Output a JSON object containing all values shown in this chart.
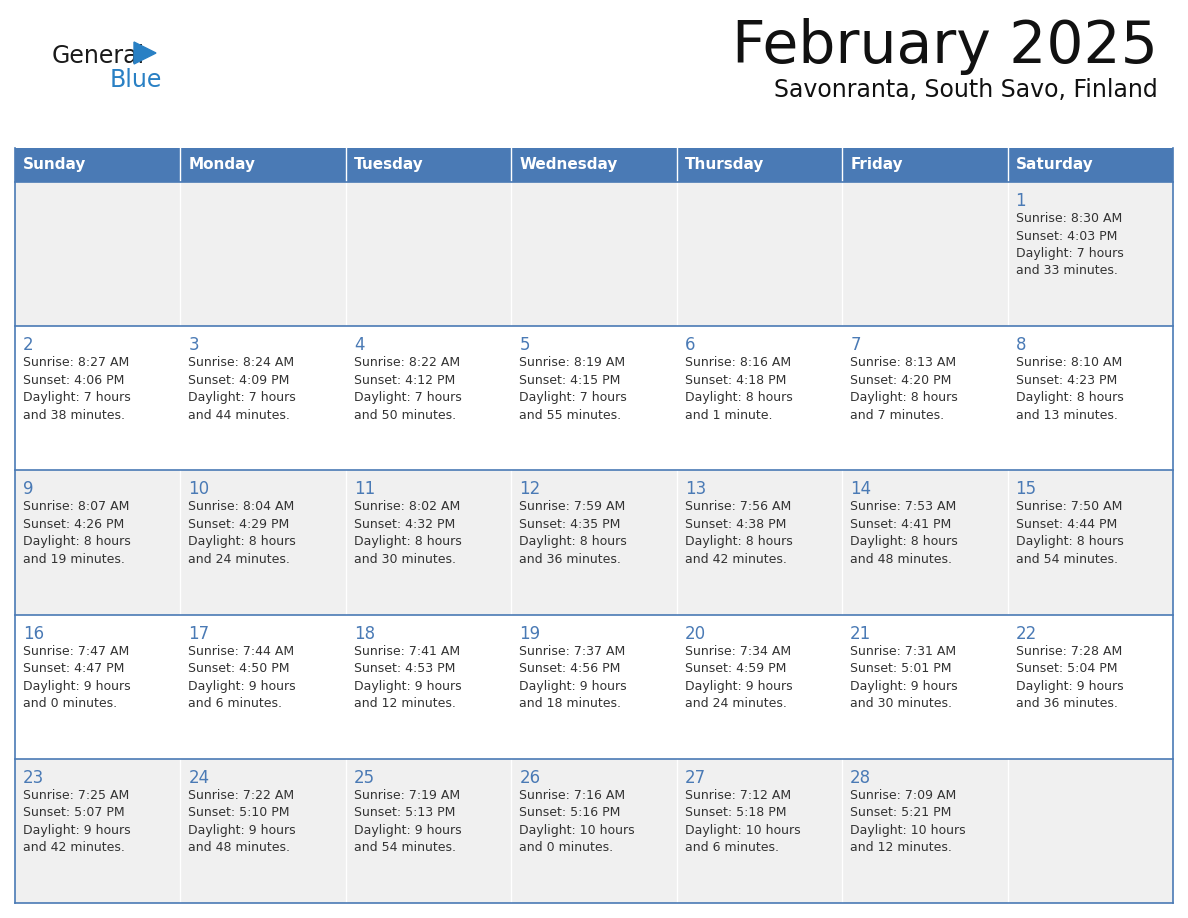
{
  "title": "February 2025",
  "subtitle": "Savonranta, South Savo, Finland",
  "header_bg_color": "#4a7ab5",
  "header_text_color": "#ffffff",
  "cell_bg_color_odd": "#f0f0f0",
  "cell_bg_color_even": "#ffffff",
  "border_color": "#4a7ab5",
  "day_number_color": "#4a7ab5",
  "text_color": "#333333",
  "days_of_week": [
    "Sunday",
    "Monday",
    "Tuesday",
    "Wednesday",
    "Thursday",
    "Friday",
    "Saturday"
  ],
  "weeks": [
    [
      {
        "day": null,
        "info": null
      },
      {
        "day": null,
        "info": null
      },
      {
        "day": null,
        "info": null
      },
      {
        "day": null,
        "info": null
      },
      {
        "day": null,
        "info": null
      },
      {
        "day": null,
        "info": null
      },
      {
        "day": 1,
        "info": "Sunrise: 8:30 AM\nSunset: 4:03 PM\nDaylight: 7 hours\nand 33 minutes."
      }
    ],
    [
      {
        "day": 2,
        "info": "Sunrise: 8:27 AM\nSunset: 4:06 PM\nDaylight: 7 hours\nand 38 minutes."
      },
      {
        "day": 3,
        "info": "Sunrise: 8:24 AM\nSunset: 4:09 PM\nDaylight: 7 hours\nand 44 minutes."
      },
      {
        "day": 4,
        "info": "Sunrise: 8:22 AM\nSunset: 4:12 PM\nDaylight: 7 hours\nand 50 minutes."
      },
      {
        "day": 5,
        "info": "Sunrise: 8:19 AM\nSunset: 4:15 PM\nDaylight: 7 hours\nand 55 minutes."
      },
      {
        "day": 6,
        "info": "Sunrise: 8:16 AM\nSunset: 4:18 PM\nDaylight: 8 hours\nand 1 minute."
      },
      {
        "day": 7,
        "info": "Sunrise: 8:13 AM\nSunset: 4:20 PM\nDaylight: 8 hours\nand 7 minutes."
      },
      {
        "day": 8,
        "info": "Sunrise: 8:10 AM\nSunset: 4:23 PM\nDaylight: 8 hours\nand 13 minutes."
      }
    ],
    [
      {
        "day": 9,
        "info": "Sunrise: 8:07 AM\nSunset: 4:26 PM\nDaylight: 8 hours\nand 19 minutes."
      },
      {
        "day": 10,
        "info": "Sunrise: 8:04 AM\nSunset: 4:29 PM\nDaylight: 8 hours\nand 24 minutes."
      },
      {
        "day": 11,
        "info": "Sunrise: 8:02 AM\nSunset: 4:32 PM\nDaylight: 8 hours\nand 30 minutes."
      },
      {
        "day": 12,
        "info": "Sunrise: 7:59 AM\nSunset: 4:35 PM\nDaylight: 8 hours\nand 36 minutes."
      },
      {
        "day": 13,
        "info": "Sunrise: 7:56 AM\nSunset: 4:38 PM\nDaylight: 8 hours\nand 42 minutes."
      },
      {
        "day": 14,
        "info": "Sunrise: 7:53 AM\nSunset: 4:41 PM\nDaylight: 8 hours\nand 48 minutes."
      },
      {
        "day": 15,
        "info": "Sunrise: 7:50 AM\nSunset: 4:44 PM\nDaylight: 8 hours\nand 54 minutes."
      }
    ],
    [
      {
        "day": 16,
        "info": "Sunrise: 7:47 AM\nSunset: 4:47 PM\nDaylight: 9 hours\nand 0 minutes."
      },
      {
        "day": 17,
        "info": "Sunrise: 7:44 AM\nSunset: 4:50 PM\nDaylight: 9 hours\nand 6 minutes."
      },
      {
        "day": 18,
        "info": "Sunrise: 7:41 AM\nSunset: 4:53 PM\nDaylight: 9 hours\nand 12 minutes."
      },
      {
        "day": 19,
        "info": "Sunrise: 7:37 AM\nSunset: 4:56 PM\nDaylight: 9 hours\nand 18 minutes."
      },
      {
        "day": 20,
        "info": "Sunrise: 7:34 AM\nSunset: 4:59 PM\nDaylight: 9 hours\nand 24 minutes."
      },
      {
        "day": 21,
        "info": "Sunrise: 7:31 AM\nSunset: 5:01 PM\nDaylight: 9 hours\nand 30 minutes."
      },
      {
        "day": 22,
        "info": "Sunrise: 7:28 AM\nSunset: 5:04 PM\nDaylight: 9 hours\nand 36 minutes."
      }
    ],
    [
      {
        "day": 23,
        "info": "Sunrise: 7:25 AM\nSunset: 5:07 PM\nDaylight: 9 hours\nand 42 minutes."
      },
      {
        "day": 24,
        "info": "Sunrise: 7:22 AM\nSunset: 5:10 PM\nDaylight: 9 hours\nand 48 minutes."
      },
      {
        "day": 25,
        "info": "Sunrise: 7:19 AM\nSunset: 5:13 PM\nDaylight: 9 hours\nand 54 minutes."
      },
      {
        "day": 26,
        "info": "Sunrise: 7:16 AM\nSunset: 5:16 PM\nDaylight: 10 hours\nand 0 minutes."
      },
      {
        "day": 27,
        "info": "Sunrise: 7:12 AM\nSunset: 5:18 PM\nDaylight: 10 hours\nand 6 minutes."
      },
      {
        "day": 28,
        "info": "Sunrise: 7:09 AM\nSunset: 5:21 PM\nDaylight: 10 hours\nand 12 minutes."
      },
      {
        "day": null,
        "info": null
      }
    ]
  ],
  "logo_general_color": "#1a1a1a",
  "logo_blue_color": "#2980c4",
  "logo_triangle_color": "#2980c4",
  "fig_width": 11.88,
  "fig_height": 9.18,
  "dpi": 100
}
